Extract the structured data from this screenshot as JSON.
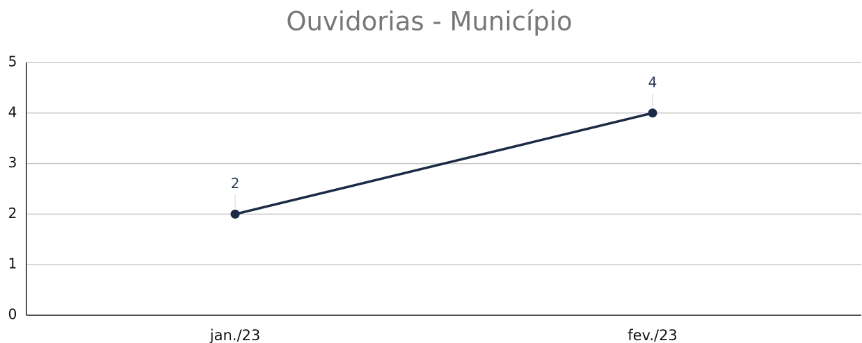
{
  "chart_data": {
    "type": "line",
    "title": "Ouvidorias - Município",
    "categories": [
      "jan./23",
      "fev./23"
    ],
    "series": [
      {
        "name": "Ouvidorias",
        "color": "#1b2a47",
        "values": [
          2,
          4
        ]
      }
    ],
    "ylim": [
      0,
      5
    ],
    "yticks": [
      0,
      1,
      2,
      3,
      4,
      5
    ],
    "grid": true
  }
}
